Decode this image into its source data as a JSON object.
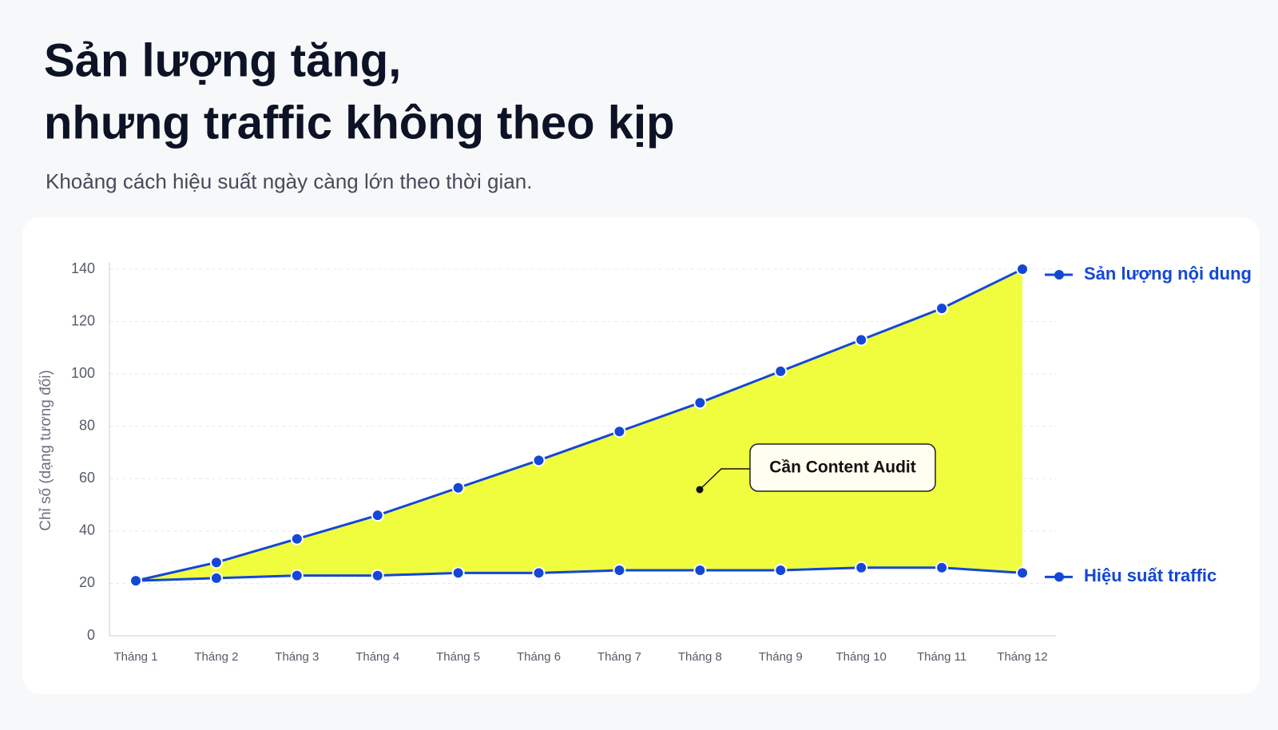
{
  "chart_data": {
    "type": "line",
    "title": [
      "Sản lượng tăng,",
      "nhưng traffic không theo kịp"
    ],
    "subtitle": "Khoảng cách hiệu suất ngày càng lớn theo thời gian.",
    "y_label": "Chỉ số (dạng tương đối)",
    "categories": [
      "Tháng 1",
      "Tháng 2",
      "Tháng 3",
      "Tháng 4",
      "Tháng 5",
      "Tháng 6",
      "Tháng 7",
      "Tháng 8",
      "Tháng 9",
      "Tháng 10",
      "Tháng 11",
      "Tháng 12"
    ],
    "series": [
      {
        "name": "Sản lượng nội dung",
        "color": "#1447d6",
        "values": [
          21,
          28,
          37,
          46,
          56.5,
          67,
          78,
          89,
          101,
          113,
          125,
          140
        ]
      },
      {
        "name": "Hiệu suất traffic",
        "color": "#1447d6",
        "values": [
          21,
          22,
          23,
          23,
          24,
          24,
          25,
          25,
          25,
          26,
          26,
          24
        ]
      }
    ],
    "fill_between_color": "#f0fd3e",
    "ylim": [
      0,
      140
    ],
    "yticks": [
      0,
      20,
      40,
      60,
      80,
      100,
      120,
      140
    ],
    "grid": true,
    "annotation": "Cần Content Audit"
  }
}
